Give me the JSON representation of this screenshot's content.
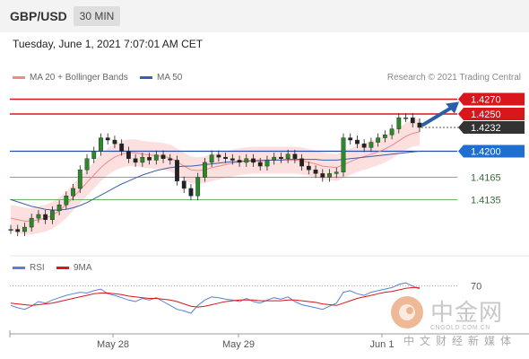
{
  "header": {
    "symbol": "GBP/USD",
    "timeframe": "30 MIN",
    "datetime": "Tuesday, June 1, 2021 7:07:01 AM CET"
  },
  "legend": {
    "ma20_label": "MA 20 + Bollinger Bands",
    "ma50_label": "MA 50",
    "copyright": "Research © 2021 Trading Central",
    "rsi_label": "RSI",
    "ma9_label": "9MA"
  },
  "colors": {
    "resistance": "#d9161c",
    "support_blue": "#2a4ea8",
    "support_green": "#3fa03f",
    "ma20": "#f08a8a",
    "bollinger_fill": "#fbd9d9",
    "ma50": "#3d5fa8",
    "candle": "#2a8a2a",
    "rsi": "#5a7fd6",
    "rsi_ma": "#d9161c",
    "arrow": "#2a5ea8"
  },
  "watermark": {
    "title": "中金网",
    "site": "CNGOLD.COM.CN",
    "subtitle": "中文财经新媒体"
  },
  "chart_data": [
    {
      "type": "line",
      "panel": "price",
      "symbol": "GBP/USD",
      "timeframe": "30 MIN",
      "x_ticks": [
        "May 28",
        "May 29",
        "Jun 1"
      ],
      "ylim": [
        1.408,
        1.4285
      ],
      "levels": [
        {
          "value": 1.427,
          "label": "1.4270",
          "type": "resistance",
          "style": "red"
        },
        {
          "value": 1.425,
          "label": "1.4250",
          "type": "resistance",
          "style": "red"
        },
        {
          "value": 1.4232,
          "label": "1.4232",
          "type": "last_price",
          "style": "dark"
        },
        {
          "value": 1.42,
          "label": "1.4200",
          "type": "support",
          "style": "blue"
        },
        {
          "value": 1.4165,
          "label": "1.4165",
          "type": "support",
          "style": "green"
        },
        {
          "value": 1.4135,
          "label": "1.4135",
          "type": "support",
          "style": "green"
        }
      ],
      "series": [
        {
          "name": "GBP/USD",
          "kind": "price",
          "values": [
            1.4095,
            1.4092,
            1.4098,
            1.411,
            1.4115,
            1.4108,
            1.412,
            1.4128,
            1.414,
            1.415,
            1.4175,
            1.419,
            1.42,
            1.4218,
            1.4215,
            1.421,
            1.42,
            1.419,
            1.4185,
            1.4192,
            1.4188,
            1.4195,
            1.419,
            1.4188,
            1.416,
            1.415,
            1.414,
            1.4165,
            1.4185,
            1.4195,
            1.4192,
            1.419,
            1.4188,
            1.4185,
            1.419,
            1.4185,
            1.418,
            1.4188,
            1.4192,
            1.419,
            1.4196,
            1.419,
            1.418,
            1.4175,
            1.417,
            1.4165,
            1.417,
            1.4172,
            1.4218,
            1.4215,
            1.421,
            1.4205,
            1.4212,
            1.4218,
            1.4222,
            1.423,
            1.4245,
            1.4245,
            1.4238,
            1.4232
          ]
        },
        {
          "name": "MA 20",
          "kind": "ma20",
          "values": [
            1.411,
            1.4108,
            1.4106,
            1.4106,
            1.4108,
            1.411,
            1.4114,
            1.412,
            1.4128,
            1.4138,
            1.4148,
            1.4158,
            1.4168,
            1.4178,
            1.4186,
            1.4192,
            1.4196,
            1.4198,
            1.4198,
            1.4196,
            1.4195,
            1.4194,
            1.4193,
            1.4191,
            1.4186,
            1.418,
            1.4175,
            1.4174,
            1.4175,
            1.4178,
            1.418,
            1.4182,
            1.4184,
            1.4186,
            1.4187,
            1.4188,
            1.4188,
            1.4188,
            1.4188,
            1.4188,
            1.4188,
            1.4188,
            1.4187,
            1.4185,
            1.4183,
            1.418,
            1.4179,
            1.4178,
            1.4182,
            1.4186,
            1.419,
            1.4193,
            1.4196,
            1.4199,
            1.4203,
            1.4208,
            1.4214,
            1.422,
            1.4224,
            1.4226
          ]
        },
        {
          "name": "MA 50",
          "kind": "ma50",
          "values": [
            1.4135,
            1.4132,
            1.4129,
            1.4126,
            1.4124,
            1.4122,
            1.4121,
            1.4121,
            1.4122,
            1.4124,
            1.4127,
            1.4131,
            1.4136,
            1.4141,
            1.4146,
            1.4151,
            1.4156,
            1.416,
            1.4164,
            1.4168,
            1.4171,
            1.4174,
            1.4176,
            1.4178,
            1.4179,
            1.418,
            1.418,
            1.4181,
            1.4182,
            1.4183,
            1.4184,
            1.4185,
            1.4186,
            1.4186,
            1.4187,
            1.4187,
            1.4187,
            1.4188,
            1.4188,
            1.4188,
            1.4189,
            1.4189,
            1.4189,
            1.4189,
            1.4189,
            1.4188,
            1.4188,
            1.4188,
            1.4189,
            1.419,
            1.4191,
            1.4192,
            1.4193,
            1.4194,
            1.4195,
            1.4196,
            1.4197,
            1.4198,
            1.4199,
            1.42
          ]
        }
      ],
      "bollinger_width": 0.0018,
      "annotation": {
        "type": "arrow",
        "from": 1.4232,
        "to": 1.427,
        "direction": "up"
      }
    },
    {
      "type": "line",
      "panel": "rsi",
      "ylabel_ticks": [
        {
          "value": 70,
          "label": "70"
        }
      ],
      "ylim": [
        20,
        80
      ],
      "series": [
        {
          "name": "RSI",
          "values": [
            45,
            42,
            40,
            44,
            50,
            48,
            52,
            55,
            58,
            60,
            62,
            61,
            64,
            66,
            60,
            58,
            55,
            52,
            50,
            54,
            52,
            55,
            50,
            45,
            40,
            38,
            35,
            45,
            52,
            56,
            55,
            53,
            52,
            50,
            54,
            50,
            48,
            52,
            55,
            53,
            56,
            50,
            46,
            44,
            42,
            40,
            44,
            48,
            62,
            64,
            60,
            58,
            62,
            64,
            66,
            68,
            72,
            74,
            70,
            66
          ]
        },
        {
          "name": "9MA",
          "values": [
            48,
            47,
            46,
            45,
            46,
            47,
            48,
            50,
            52,
            54,
            56,
            58,
            60,
            61,
            61,
            60,
            59,
            57,
            56,
            55,
            54,
            54,
            53,
            52,
            50,
            47,
            44,
            43,
            44,
            46,
            48,
            50,
            51,
            52,
            52,
            52,
            51,
            51,
            51,
            51,
            52,
            52,
            51,
            50,
            49,
            47,
            46,
            45,
            48,
            51,
            54,
            56,
            58,
            60,
            62,
            63,
            65,
            67,
            68,
            68
          ]
        }
      ]
    }
  ]
}
